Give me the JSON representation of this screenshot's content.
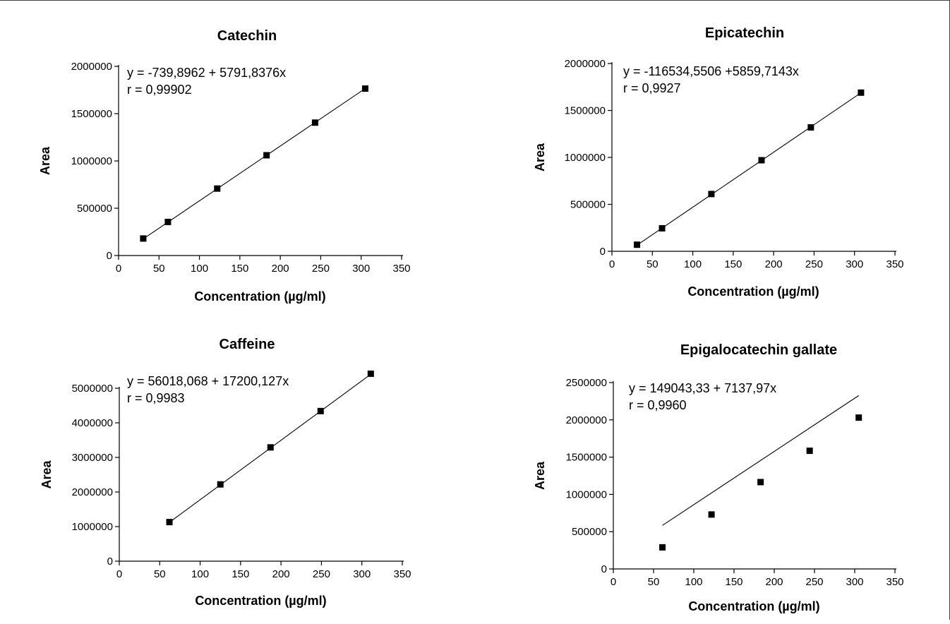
{
  "chart_data": [
    {
      "type": "scatter",
      "title": "Catechin",
      "xlabel": "Concentration (µg/ml)",
      "ylabel": "Area",
      "xlim": [
        0,
        350
      ],
      "ylim": [
        0,
        2000000
      ],
      "xticks": [
        0,
        50,
        100,
        150,
        200,
        250,
        300,
        350
      ],
      "yticks": [
        0,
        500000,
        1000000,
        1500000,
        2000000
      ],
      "xtick_labels": [
        "0",
        "50",
        "100",
        "150",
        "200",
        "250",
        "300",
        "350"
      ],
      "ytick_labels": [
        "0",
        "500000",
        "1000000",
        "1500000",
        "2000000"
      ],
      "grid": false,
      "annotations": [
        "y = -739,8962 + 5791,8376x",
        "r = 0,99902"
      ],
      "fit": {
        "intercept": -739.8962,
        "slope": 5791.8376
      },
      "series": [
        {
          "x": [
            30.5,
            61,
            122,
            183,
            243,
            305
          ],
          "y": [
            180000,
            355000,
            708000,
            1060000,
            1405000,
            1765000
          ]
        }
      ]
    },
    {
      "type": "scatter",
      "title": "Epicatechin",
      "xlabel": "Concentration (µg/ml)",
      "ylabel": "Area",
      "xlim": [
        0,
        350
      ],
      "ylim": [
        0,
        2000000
      ],
      "xticks": [
        0,
        50,
        100,
        150,
        200,
        250,
        300,
        350
      ],
      "yticks": [
        0,
        500000,
        1000000,
        1500000,
        2000000
      ],
      "xtick_labels": [
        "0",
        "50",
        "100",
        "150",
        "200",
        "250",
        "300",
        "350"
      ],
      "ytick_labels": [
        "0",
        "500000",
        "1000000",
        "1500000",
        "2000000"
      ],
      "grid": false,
      "annotations": [
        "y = -116534,5506 +5859,7143x",
        "r = 0,9927"
      ],
      "fit": {
        "intercept": -116534.5506,
        "slope": 5859.7143
      },
      "series": [
        {
          "x": [
            31,
            62,
            123,
            185,
            246,
            308
          ],
          "y": [
            70000,
            245000,
            610000,
            970000,
            1320000,
            1690000
          ]
        }
      ]
    },
    {
      "type": "scatter",
      "title": "Caffeine",
      "xlabel": "Concentration (µg/ml)",
      "ylabel": "Area",
      "xlim": [
        0,
        350
      ],
      "ylim": [
        0,
        5000000
      ],
      "xticks": [
        0,
        50,
        100,
        150,
        200,
        250,
        300,
        350
      ],
      "yticks": [
        0,
        1000000,
        2000000,
        3000000,
        4000000,
        5000000
      ],
      "xtick_labels": [
        "0",
        "50",
        "100",
        "150",
        "200",
        "250",
        "300",
        "350"
      ],
      "ytick_labels": [
        "0",
        "1000000",
        "2000000",
        "3000000",
        "4000000",
        "5000000"
      ],
      "grid": false,
      "annotations": [
        "y = 56018,068 + 17200,127x",
        "r = 0,9983"
      ],
      "fit": {
        "intercept": 56018.068,
        "slope": 17200.127
      },
      "series": [
        {
          "x": [
            62,
            125,
            187,
            249,
            311
          ],
          "y": [
            1130000,
            2220000,
            3290000,
            4340000,
            5420000
          ]
        }
      ]
    },
    {
      "type": "scatter",
      "title": "Epigalocatechin gallate",
      "xlabel": "Concentration (µg/ml)",
      "ylabel": "Area",
      "xlim": [
        0,
        350
      ],
      "ylim": [
        0,
        2500000
      ],
      "xticks": [
        0,
        50,
        100,
        150,
        200,
        250,
        300,
        350
      ],
      "yticks": [
        0,
        500000,
        1000000,
        1500000,
        2000000,
        2500000
      ],
      "xtick_labels": [
        "0",
        "50",
        "100",
        "150",
        "200",
        "250",
        "300",
        "350"
      ],
      "ytick_labels": [
        "0",
        "500000",
        "1000000",
        "1500000",
        "2000000",
        "2500000"
      ],
      "grid": false,
      "annotations": [
        "y = 149043,33 + 7137,97x",
        "r = 0,9960"
      ],
      "fit": {
        "intercept": 149043.33,
        "slope": 7137.97
      },
      "series": [
        {
          "x": [
            61,
            122,
            183,
            244,
            305
          ],
          "y": [
            290000,
            730000,
            1165000,
            1585000,
            2030000
          ]
        }
      ]
    }
  ]
}
